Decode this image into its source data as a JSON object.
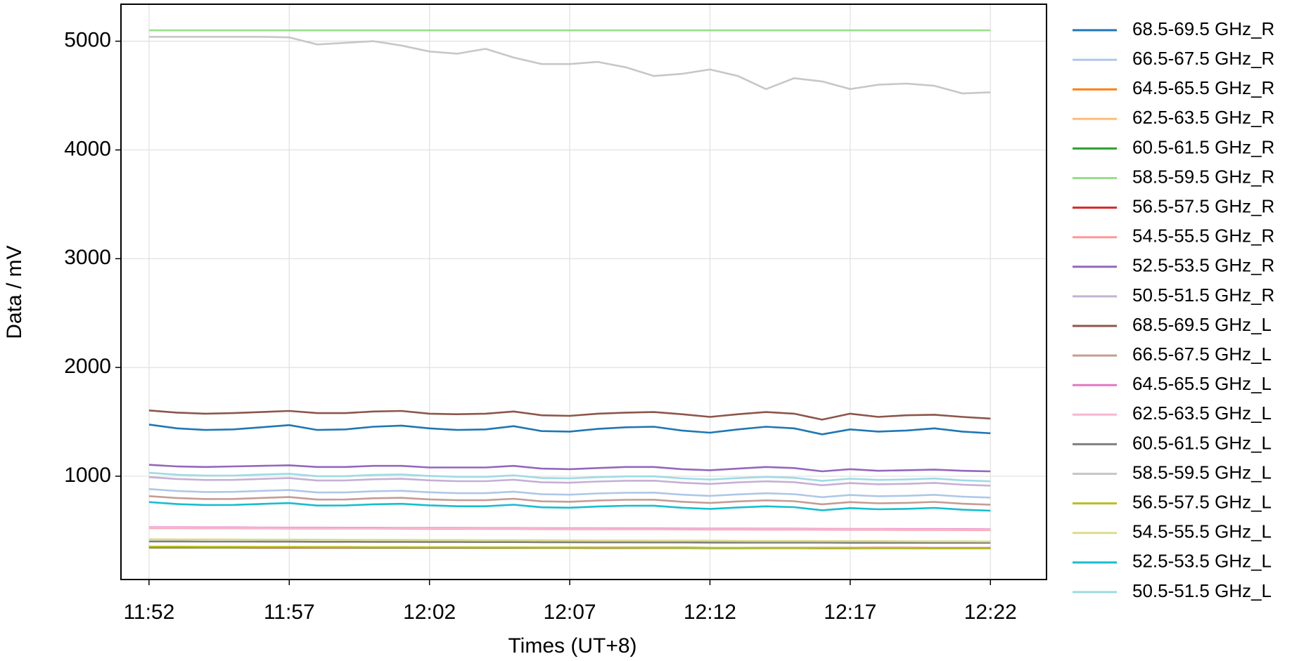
{
  "chart_data": {
    "type": "line",
    "x_label": "Times (UT+8)",
    "y_label": "Data / mV",
    "x": [
      "11:52",
      "11:53",
      "11:54",
      "11:55",
      "11:56",
      "11:57",
      "11:58",
      "11:59",
      "12:00",
      "12:01",
      "12:02",
      "12:03",
      "12:04",
      "12:05",
      "12:06",
      "12:07",
      "12:08",
      "12:09",
      "12:10",
      "12:11",
      "12:12",
      "12:13",
      "12:14",
      "12:15",
      "12:16",
      "12:17",
      "12:18",
      "12:19",
      "12:20",
      "12:21",
      "12:22"
    ],
    "xlim": [
      "11:51",
      "12:24"
    ],
    "xticks": [
      "11:52",
      "11:57",
      "12:02",
      "12:07",
      "12:12",
      "12:17",
      "12:22"
    ],
    "ylim": [
      50,
      5340
    ],
    "yticks": [
      1000,
      2000,
      3000,
      4000,
      5000
    ],
    "grid": true,
    "legend": "outside-right",
    "series": [
      {
        "name": "68.5-69.5 GHz_R",
        "color": "#1f77b4",
        "values": [
          1475,
          1440,
          1425,
          1430,
          1450,
          1470,
          1425,
          1430,
          1455,
          1465,
          1440,
          1425,
          1430,
          1460,
          1415,
          1410,
          1435,
          1450,
          1455,
          1420,
          1400,
          1430,
          1455,
          1440,
          1385,
          1430,
          1410,
          1420,
          1440,
          1410,
          1395
        ]
      },
      {
        "name": "66.5-67.5 GHz_R",
        "color": "#aec7e8",
        "values": [
          882,
          864,
          855,
          856,
          865,
          873,
          850,
          851,
          862,
          866,
          852,
          844,
          844,
          858,
          834,
          830,
          841,
          848,
          849,
          830,
          819,
          833,
          843,
          835,
          807,
          827,
          816,
          820,
          829,
          812,
          803
        ]
      },
      {
        "name": "64.5-65.5 GHz_R",
        "color": "#ff7f0e",
        "values": [
          345,
          345,
          345,
          345,
          344,
          344,
          344,
          344,
          343,
          343,
          343,
          343,
          342,
          342,
          342,
          342,
          341,
          341,
          341,
          341,
          340,
          340,
          340,
          340,
          339,
          339,
          339,
          339,
          338,
          338,
          338
        ]
      },
      {
        "name": "62.5-63.5 GHz_R",
        "color": "#ffbb78",
        "values": [
          346,
          346,
          346,
          346,
          345,
          345,
          345,
          345,
          344,
          344,
          344,
          344,
          343,
          343,
          343,
          343,
          342,
          342,
          342,
          342,
          341,
          341,
          341,
          341,
          340,
          340,
          340,
          340,
          339,
          339,
          339
        ]
      },
      {
        "name": "60.5-61.5 GHz_R",
        "color": "#2ca02c",
        "values": [
          344,
          344,
          344,
          344,
          343,
          343,
          343,
          343,
          342,
          342,
          342,
          342,
          341,
          341,
          341,
          341,
          340,
          340,
          340,
          340,
          339,
          339,
          339,
          339,
          338,
          338,
          338,
          338,
          337,
          337,
          337
        ]
      },
      {
        "name": "58.5-59.5 GHz_R",
        "color": "#98df8a",
        "values": [
          5100,
          5100,
          5100,
          5100,
          5100,
          5100,
          5100,
          5100,
          5100,
          5100,
          5100,
          5100,
          5100,
          5100,
          5100,
          5100,
          5100,
          5100,
          5100,
          5100,
          5100,
          5100,
          5100,
          5100,
          5100,
          5100,
          5100,
          5100,
          5100,
          5100,
          5100
        ]
      },
      {
        "name": "56.5-57.5 GHz_R",
        "color": "#d62728",
        "values": [
          347,
          347,
          347,
          347,
          346,
          346,
          346,
          346,
          345,
          345,
          345,
          345,
          344,
          344,
          344,
          344,
          343,
          343,
          343,
          343,
          342,
          342,
          342,
          342,
          341,
          341,
          341,
          341,
          340,
          340,
          340
        ]
      },
      {
        "name": "54.5-55.5 GHz_R",
        "color": "#ff9896",
        "values": [
          522,
          522,
          521,
          521,
          520,
          519,
          519,
          518,
          518,
          517,
          516,
          516,
          515,
          515,
          514,
          513,
          513,
          512,
          512,
          511,
          510,
          510,
          509,
          509,
          508,
          507,
          507,
          506,
          506,
          505,
          504
        ]
      },
      {
        "name": "52.5-53.5 GHz_R",
        "color": "#9467bd",
        "values": [
          1105,
          1090,
          1085,
          1090,
          1095,
          1100,
          1085,
          1085,
          1095,
          1095,
          1080,
          1080,
          1080,
          1095,
          1070,
          1065,
          1075,
          1085,
          1085,
          1065,
          1055,
          1070,
          1085,
          1075,
          1045,
          1065,
          1050,
          1055,
          1060,
          1050,
          1045
        ]
      },
      {
        "name": "50.5-51.5 GHz_R",
        "color": "#c5b0d5",
        "values": [
          992,
          974,
          965,
          966,
          975,
          983,
          960,
          961,
          972,
          976,
          962,
          954,
          954,
          968,
          944,
          940,
          951,
          958,
          959,
          940,
          929,
          943,
          953,
          945,
          917,
          937,
          926,
          930,
          939,
          922,
          913
        ]
      },
      {
        "name": "68.5-69.5 GHz_L",
        "color": "#8c564b",
        "values": [
          1605,
          1585,
          1575,
          1580,
          1590,
          1600,
          1580,
          1580,
          1595,
          1600,
          1575,
          1570,
          1575,
          1595,
          1560,
          1555,
          1575,
          1585,
          1590,
          1570,
          1545,
          1570,
          1590,
          1575,
          1520,
          1575,
          1545,
          1560,
          1565,
          1545,
          1530
        ]
      },
      {
        "name": "66.5-67.5 GHz_L",
        "color": "#c49c94",
        "values": [
          817,
          799,
          790,
          791,
          800,
          808,
          785,
          786,
          797,
          801,
          787,
          779,
          779,
          793,
          769,
          765,
          776,
          783,
          784,
          765,
          754,
          768,
          778,
          770,
          742,
          762,
          751,
          755,
          764,
          747,
          738
        ]
      },
      {
        "name": "64.5-65.5 GHz_L",
        "color": "#e377c2",
        "values": [
          530,
          530,
          529,
          529,
          528,
          527,
          527,
          526,
          526,
          525,
          524,
          524,
          523,
          523,
          522,
          521,
          521,
          520,
          520,
          519,
          518,
          518,
          517,
          517,
          516,
          515,
          515,
          514,
          514,
          513,
          512
        ]
      },
      {
        "name": "62.5-63.5 GHz_L",
        "color": "#f7b6d2",
        "values": [
          526,
          526,
          525,
          525,
          524,
          523,
          523,
          522,
          522,
          521,
          520,
          520,
          519,
          519,
          518,
          517,
          517,
          516,
          516,
          515,
          514,
          514,
          513,
          513,
          512,
          511,
          511,
          510,
          510,
          509,
          508
        ]
      },
      {
        "name": "60.5-61.5 GHz_L",
        "color": "#7f7f7f",
        "values": [
          400,
          400,
          399,
          399,
          398,
          398,
          397,
          397,
          396,
          396,
          395,
          395,
          394,
          394,
          393,
          393,
          392,
          392,
          391,
          391,
          390,
          390,
          389,
          389,
          389,
          388,
          388,
          388,
          388,
          388,
          388
        ]
      },
      {
        "name": "58.5-59.5 GHz_L",
        "color": "#c7c7c7",
        "values": [
          5040,
          5040,
          5040,
          5040,
          5040,
          5035,
          4970,
          4985,
          5000,
          4960,
          4905,
          4885,
          4930,
          4850,
          4790,
          4790,
          4810,
          4760,
          4680,
          4700,
          4740,
          4680,
          4560,
          4660,
          4630,
          4560,
          4600,
          4610,
          4590,
          4520,
          4530
        ]
      },
      {
        "name": "56.5-57.5 GHz_L",
        "color": "#bcbd22",
        "values": [
          352,
          352,
          351,
          351,
          350,
          350,
          349,
          349,
          348,
          348,
          347,
          347,
          346,
          346,
          345,
          345,
          344,
          344,
          343,
          343,
          342,
          342,
          341,
          341,
          340,
          340,
          339,
          339,
          338,
          338,
          338
        ]
      },
      {
        "name": "54.5-55.5 GHz_L",
        "color": "#dbdb8d",
        "values": [
          420,
          419,
          419,
          418,
          417,
          417,
          416,
          415,
          415,
          414,
          413,
          413,
          412,
          411,
          411,
          410,
          409,
          409,
          408,
          407,
          407,
          406,
          405,
          405,
          404,
          403,
          403,
          402,
          401,
          401,
          400
        ]
      },
      {
        "name": "52.5-53.5 GHz_L",
        "color": "#17becf",
        "values": [
          762,
          744,
          735,
          736,
          745,
          753,
          730,
          731,
          742,
          746,
          732,
          724,
          724,
          738,
          714,
          710,
          721,
          728,
          729,
          710,
          699,
          713,
          723,
          715,
          687,
          707,
          696,
          700,
          709,
          692,
          683
        ]
      },
      {
        "name": "50.5-51.5 GHz_L",
        "color": "#9edae5",
        "values": [
          1032,
          1014,
          1005,
          1006,
          1015,
          1023,
          1000,
          1001,
          1012,
          1016,
          1002,
          994,
          994,
          1008,
          984,
          980,
          991,
          998,
          999,
          980,
          969,
          983,
          993,
          985,
          957,
          977,
          966,
          970,
          979,
          962,
          953
        ]
      }
    ]
  }
}
